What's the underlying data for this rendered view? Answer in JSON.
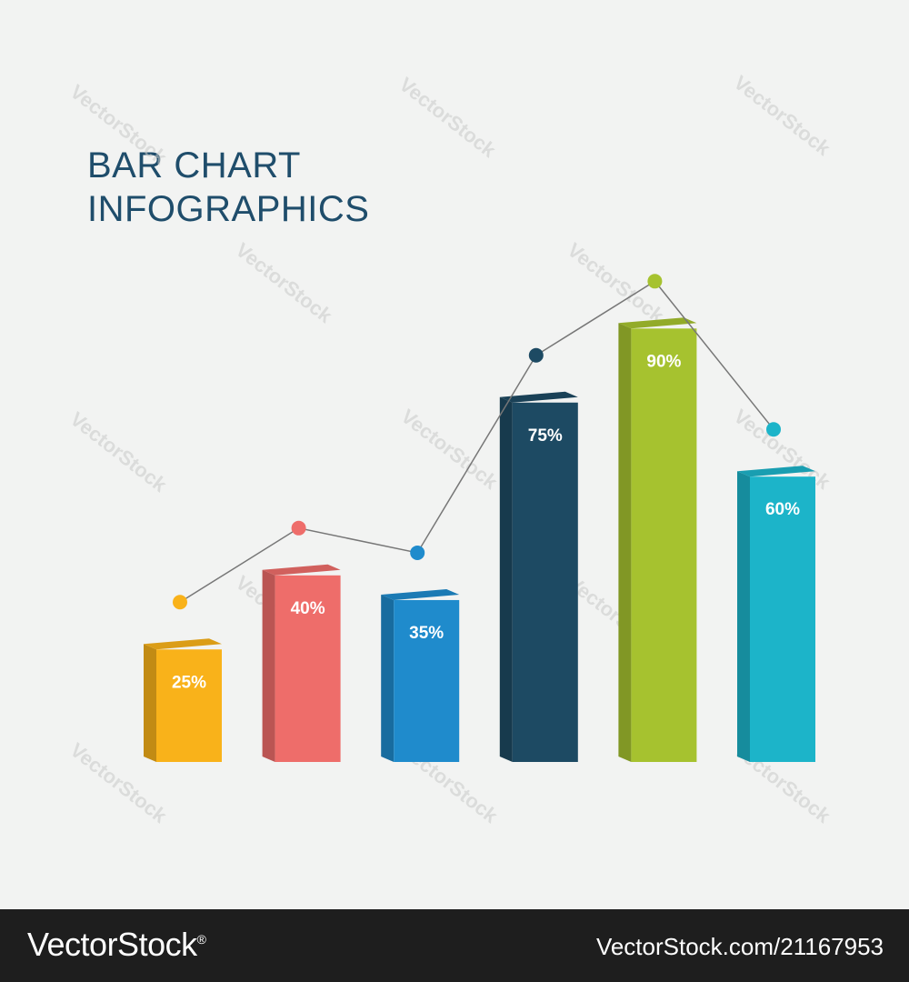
{
  "title": {
    "line1": "BAR CHART",
    "line2": "INFOGRAPHICS"
  },
  "watermark": "VectorStock",
  "footer": {
    "brand": "VectorStock",
    "brand_suffix": "®",
    "id": "VectorStock.com/21167953"
  },
  "chart_data": {
    "type": "bar",
    "title": "BAR CHART INFOGRAPHICS",
    "categories": [
      "",
      "",
      "",
      "",
      "",
      ""
    ],
    "values": [
      25,
      40,
      35,
      75,
      90,
      60
    ],
    "labels": [
      "25%",
      "40%",
      "35%",
      "75%",
      "90%",
      "60%"
    ],
    "colors": [
      "#f9b21a",
      "#ee6d6a",
      "#1f8bcc",
      "#1d4a63",
      "#a6c22f",
      "#1cb4c9"
    ],
    "overlay_line": {
      "type": "line",
      "values": [
        25,
        40,
        35,
        75,
        90,
        60
      ],
      "color": "#777777",
      "marker_colors": [
        "#f9b21a",
        "#ee6d6a",
        "#1f8bcc",
        "#1d4a63",
        "#a6c22f",
        "#1cb4c9"
      ]
    },
    "ylim": [
      0,
      100
    ],
    "grid": false,
    "legend": "none"
  }
}
